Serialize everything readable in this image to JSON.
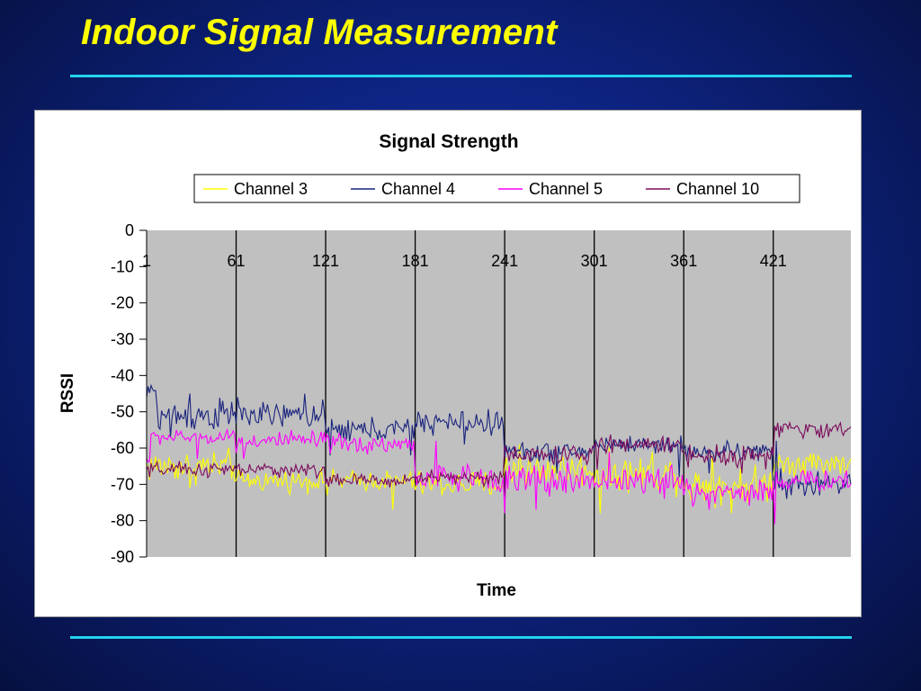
{
  "slide": {
    "title": "Indoor Signal Measurement"
  },
  "colors": {
    "background": "#0d2380",
    "title": "#ffff00",
    "rule": "#22d3ee",
    "plot_area": "#c0c0c0"
  },
  "chart_data": {
    "type": "line",
    "title": "Signal Strength",
    "xlabel": "Time",
    "ylabel": "RSSI",
    "ylim": [
      -90,
      0
    ],
    "yticks": [
      0,
      -10,
      -20,
      -30,
      -40,
      -50,
      -60,
      -70,
      -80,
      -90
    ],
    "x_range": [
      1,
      473
    ],
    "x_ticks": [
      1,
      61,
      121,
      181,
      241,
      301,
      361,
      421
    ],
    "x_tick_labels": [
      "1",
      "61",
      "121",
      "181",
      "241",
      "301",
      "361",
      "421"
    ],
    "vertical_gridlines": true,
    "horizontal_gridlines": false,
    "legend_position": "top",
    "series": [
      {
        "name": "Channel 3",
        "color": "#ffff00",
        "segments": [
          {
            "x_start": 1,
            "x_end": 61,
            "mean": -65,
            "noise": 3.5,
            "spikes": [
              [
                30,
                -71
              ],
              [
                62,
                -76
              ]
            ]
          },
          {
            "x_start": 61,
            "x_end": 181,
            "mean": -69,
            "noise": 2.2,
            "spikes": [
              [
                122,
                -73
              ],
              [
                166,
                -77
              ]
            ]
          },
          {
            "x_start": 181,
            "x_end": 241,
            "mean": -70,
            "noise": 2.8,
            "spikes": []
          },
          {
            "x_start": 241,
            "x_end": 301,
            "mean": -66,
            "noise": 3.5,
            "spikes": [
              [
                251,
                -59
              ]
            ]
          },
          {
            "x_start": 301,
            "x_end": 361,
            "mean": -67,
            "noise": 3.8,
            "spikes": [
              [
                305,
                -78
              ],
              [
                340,
                -61
              ]
            ]
          },
          {
            "x_start": 361,
            "x_end": 421,
            "mean": -70,
            "noise": 3.8,
            "spikes": [
              [
                380,
                -62
              ],
              [
                393,
                -78
              ]
            ]
          },
          {
            "x_start": 421,
            "x_end": 473,
            "mean": -64,
            "noise": 2.8,
            "spikes": []
          }
        ]
      },
      {
        "name": "Channel 4",
        "color": "#1a237e",
        "segments": [
          {
            "x_start": 1,
            "x_end": 8,
            "mean": -44,
            "noise": 1.0,
            "spikes": [
              [
                1,
                -46
              ]
            ]
          },
          {
            "x_start": 8,
            "x_end": 61,
            "mean": -51,
            "noise": 3.5,
            "spikes": [
              [
                17,
                -57
              ],
              [
                30,
                -45
              ]
            ]
          },
          {
            "x_start": 61,
            "x_end": 121,
            "mean": -51,
            "noise": 2.6,
            "spikes": [
              [
                62,
                -46
              ],
              [
                107,
                -45
              ]
            ]
          },
          {
            "x_start": 121,
            "x_end": 181,
            "mean": -55,
            "noise": 2.6,
            "spikes": [
              [
                124,
                -62
              ],
              [
                178,
                -62
              ]
            ]
          },
          {
            "x_start": 181,
            "x_end": 241,
            "mean": -53,
            "noise": 2.5,
            "spikes": [
              [
                195,
                -51
              ],
              [
                214,
                -59
              ]
            ]
          },
          {
            "x_start": 241,
            "x_end": 301,
            "mean": -61,
            "noise": 2.0,
            "spikes": [
              [
                276,
                -67
              ]
            ]
          },
          {
            "x_start": 301,
            "x_end": 361,
            "mean": -59,
            "noise": 1.8,
            "spikes": [
              [
                358,
                -68
              ]
            ]
          },
          {
            "x_start": 361,
            "x_end": 421,
            "mean": -61,
            "noise": 2.0,
            "spikes": [
              [
                378,
                -67
              ]
            ]
          },
          {
            "x_start": 421,
            "x_end": 473,
            "mean": -70,
            "noise": 2.8,
            "spikes": [
              [
                423,
                -58
              ],
              [
                430,
                -74
              ]
            ]
          }
        ]
      },
      {
        "name": "Channel 5",
        "color": "#ff00ff",
        "segments": [
          {
            "x_start": 1,
            "x_end": 4,
            "mean": -63,
            "noise": 1.5,
            "spikes": []
          },
          {
            "x_start": 4,
            "x_end": 61,
            "mean": -57,
            "noise": 1.5,
            "spikes": [
              [
                35,
                -63
              ],
              [
                55,
                -55
              ]
            ]
          },
          {
            "x_start": 61,
            "x_end": 121,
            "mean": -58,
            "noise": 2.0,
            "spikes": [
              [
                66,
                -63
              ]
            ]
          },
          {
            "x_start": 121,
            "x_end": 181,
            "mean": -59,
            "noise": 2.0,
            "spikes": [
              [
                130,
                -56
              ]
            ]
          },
          {
            "x_start": 181,
            "x_end": 241,
            "mean": -68,
            "noise": 2.6,
            "spikes": [
              [
                195,
                -58
              ],
              [
                210,
                -72
              ]
            ]
          },
          {
            "x_start": 241,
            "x_end": 301,
            "mean": -69,
            "noise": 3.5,
            "spikes": [
              [
                241,
                -78
              ],
              [
                262,
                -77
              ]
            ]
          },
          {
            "x_start": 301,
            "x_end": 361,
            "mean": -69,
            "noise": 3.2,
            "spikes": [
              [
                311,
                -61
              ],
              [
                348,
                -74
              ]
            ]
          },
          {
            "x_start": 361,
            "x_end": 421,
            "mean": -72,
            "noise": 3.0,
            "spikes": [
              [
                378,
                -77
              ]
            ]
          },
          {
            "x_start": 421,
            "x_end": 473,
            "mean": -69,
            "noise": 2.2,
            "spikes": [
              [
                422,
                -81
              ]
            ]
          }
        ]
      },
      {
        "name": "Channel 10",
        "color": "#7b0a5c",
        "segments": [
          {
            "x_start": 1,
            "x_end": 61,
            "mean": -66,
            "noise": 1.6,
            "spikes": [
              [
                3,
                -68
              ]
            ]
          },
          {
            "x_start": 61,
            "x_end": 121,
            "mean": -66,
            "noise": 1.4,
            "spikes": []
          },
          {
            "x_start": 121,
            "x_end": 181,
            "mean": -69,
            "noise": 1.5,
            "spikes": []
          },
          {
            "x_start": 181,
            "x_end": 241,
            "mean": -68,
            "noise": 1.6,
            "spikes": []
          },
          {
            "x_start": 241,
            "x_end": 301,
            "mean": -62,
            "noise": 2.0,
            "spikes": []
          },
          {
            "x_start": 301,
            "x_end": 361,
            "mean": -59,
            "noise": 1.8,
            "spikes": [
              [
                303,
                -66
              ]
            ]
          },
          {
            "x_start": 361,
            "x_end": 421,
            "mean": -62,
            "noise": 2.2,
            "spikes": [
              [
                400,
                -67
              ]
            ]
          },
          {
            "x_start": 421,
            "x_end": 473,
            "mean": -55,
            "noise": 1.6,
            "spikes": [
              [
                421,
                -62
              ],
              [
                424,
                -53
              ]
            ]
          }
        ]
      }
    ]
  }
}
